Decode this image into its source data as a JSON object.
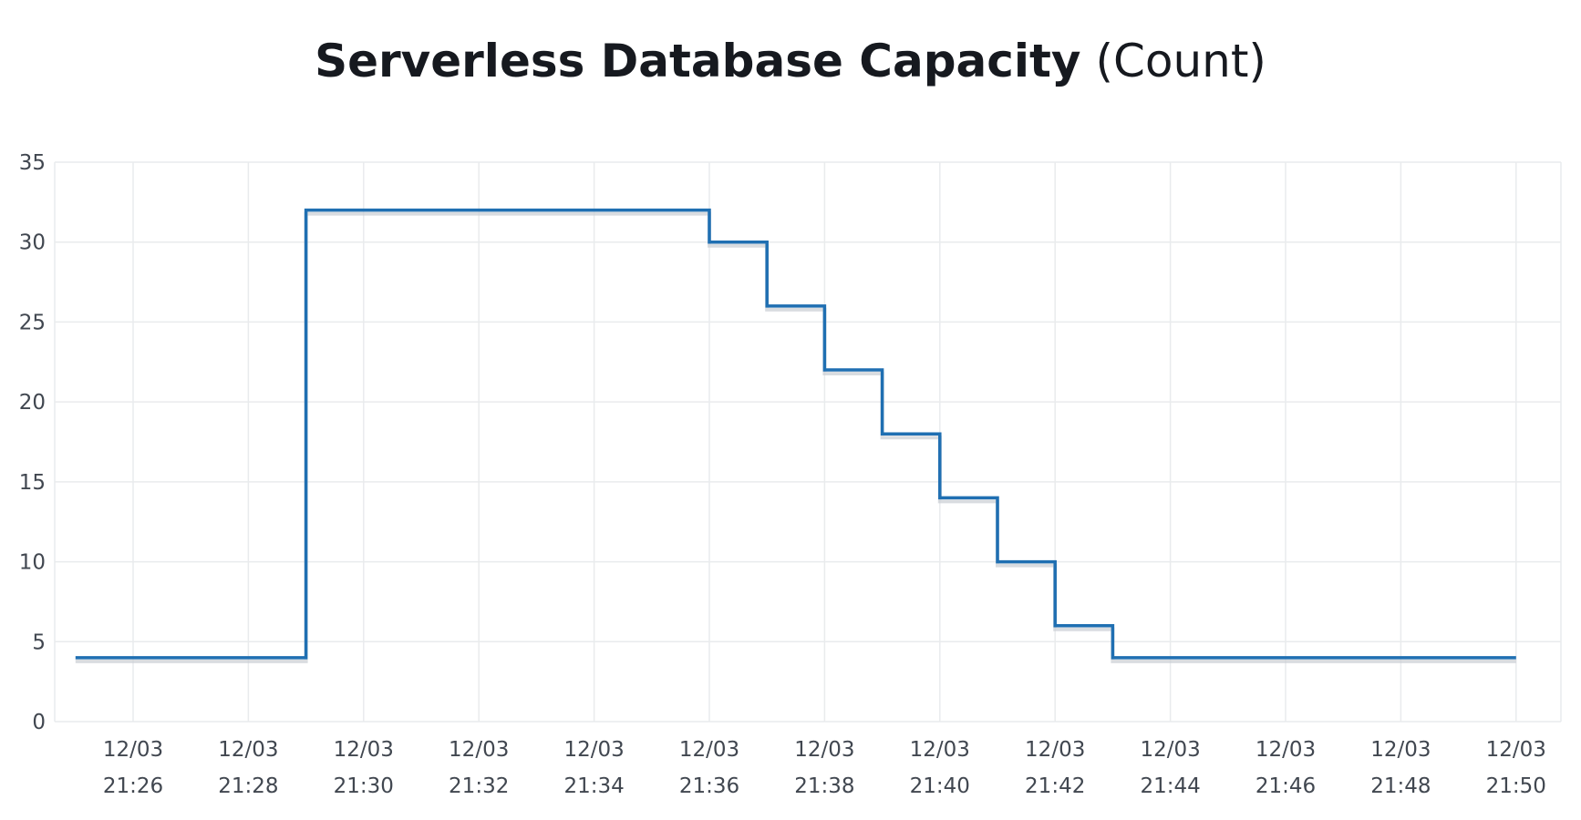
{
  "chart_data": {
    "type": "line",
    "title": "Serverless Database Capacity",
    "unit": "(Count)",
    "xlabel": "",
    "ylabel": "",
    "ylim": [
      0,
      35
    ],
    "yticks": [
      0,
      5,
      10,
      15,
      20,
      25,
      30,
      35
    ],
    "grid": true,
    "step": true,
    "colors": {
      "series": "#1f6fb2",
      "grid": "#e9ebed"
    },
    "x_ticks": [
      {
        "date": "12/03",
        "time": "21:26"
      },
      {
        "date": "12/03",
        "time": "21:28"
      },
      {
        "date": "12/03",
        "time": "21:30"
      },
      {
        "date": "12/03",
        "time": "21:32"
      },
      {
        "date": "12/03",
        "time": "21:34"
      },
      {
        "date": "12/03",
        "time": "21:36"
      },
      {
        "date": "12/03",
        "time": "21:38"
      },
      {
        "date": "12/03",
        "time": "21:40"
      },
      {
        "date": "12/03",
        "time": "21:42"
      },
      {
        "date": "12/03",
        "time": "21:44"
      },
      {
        "date": "12/03",
        "time": "21:46"
      },
      {
        "date": "12/03",
        "time": "21:48"
      },
      {
        "date": "12/03",
        "time": "21:50"
      }
    ],
    "series": [
      {
        "name": "",
        "points": [
          {
            "x": "21:25",
            "y": 4
          },
          {
            "x": "21:29",
            "y": 32
          },
          {
            "x": "21:36",
            "y": 30
          },
          {
            "x": "21:37",
            "y": 26
          },
          {
            "x": "21:38",
            "y": 22
          },
          {
            "x": "21:39",
            "y": 18
          },
          {
            "x": "21:40",
            "y": 14
          },
          {
            "x": "21:41",
            "y": 10
          },
          {
            "x": "21:42",
            "y": 6
          },
          {
            "x": "21:43",
            "y": 4
          },
          {
            "x": "21:50",
            "y": 4
          }
        ]
      }
    ]
  }
}
